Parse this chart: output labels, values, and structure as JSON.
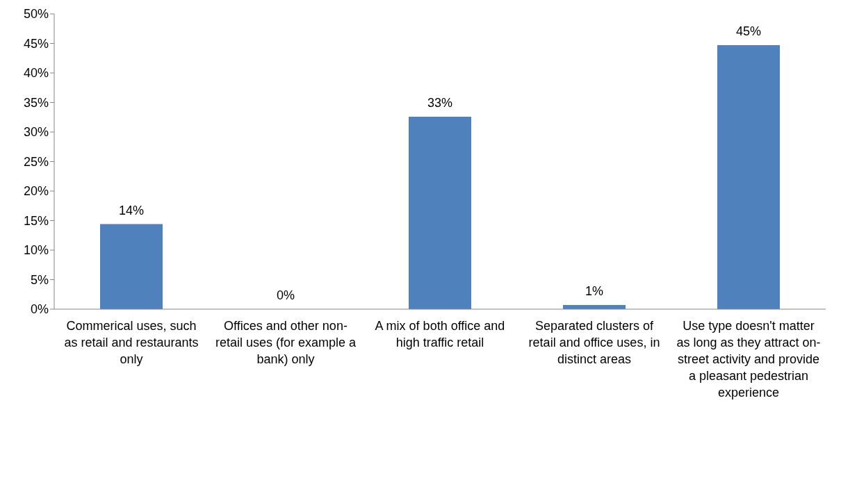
{
  "chart_data": {
    "type": "bar",
    "categories": [
      "Commerical uses, such as retail and restaurants only",
      "Offices and other non-retail uses (for example a bank) only",
      "A mix of both office and high traffic retail",
      "Separated clusters of retail and office uses, in distinct areas",
      "Use type doesn't matter as long as they attract on-street activity and provide a pleasant pedestrian experience"
    ],
    "values": [
      14.4,
      0,
      32.6,
      0.7,
      44.7
    ],
    "value_labels": [
      "14%",
      "0%",
      "33%",
      "1%",
      "45%"
    ],
    "color": "#4f81bd",
    "ylim": [
      0,
      50
    ],
    "yticks": [
      {
        "value": 0,
        "label": "0%"
      },
      {
        "value": 5,
        "label": "5%"
      },
      {
        "value": 10,
        "label": "10%"
      },
      {
        "value": 15,
        "label": "15%"
      },
      {
        "value": 20,
        "label": "20%"
      },
      {
        "value": 25,
        "label": "25%"
      },
      {
        "value": 30,
        "label": "30%"
      },
      {
        "value": 35,
        "label": "35%"
      },
      {
        "value": 40,
        "label": "40%"
      },
      {
        "value": 45,
        "label": "45%"
      },
      {
        "value": 50,
        "label": "50%"
      }
    ],
    "grid": false,
    "legend": false
  }
}
